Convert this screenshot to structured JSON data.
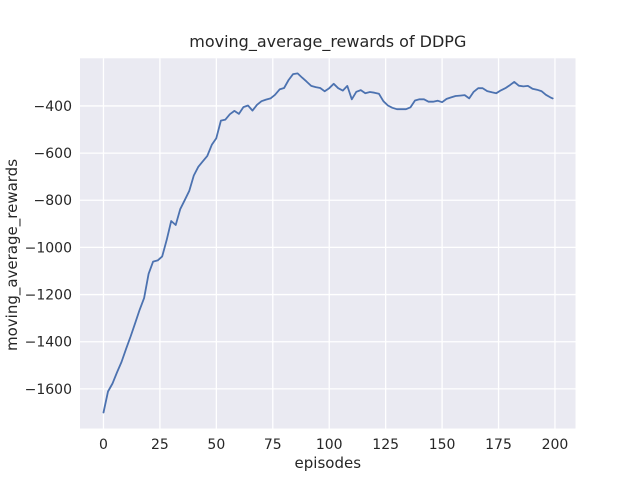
{
  "figure": {
    "background": "#ffffff"
  },
  "chart_data": {
    "type": "line",
    "title": "moving_average_rewards of DDPG",
    "xlabel": "episodes",
    "ylabel": "moving_average_rewards",
    "legend_position": "none",
    "grid": true,
    "plot_bg_color": "#eaeaf2",
    "grid_color": "#ffffff",
    "line_color": "#4c72b0",
    "text_color": "#262626",
    "xticks": [
      0,
      25,
      50,
      75,
      100,
      125,
      150,
      175,
      200
    ],
    "yticks": [
      -400,
      -600,
      -800,
      -1000,
      -1200,
      -1400,
      -1600
    ],
    "xlim": [
      -10.4,
      209.1
    ],
    "ylim": [
      -1768,
      -198
    ],
    "x": [
      0,
      2,
      4,
      6,
      8,
      10,
      12,
      14,
      16,
      18,
      20,
      22,
      24,
      26,
      28,
      30,
      32,
      34,
      36,
      38,
      40,
      42,
      44,
      46,
      48,
      50,
      52,
      54,
      56,
      58,
      60,
      62,
      64,
      66,
      68,
      70,
      72,
      74,
      76,
      78,
      80,
      82,
      84,
      86,
      88,
      90,
      92,
      94,
      96,
      98,
      100,
      102,
      104,
      106,
      108,
      110,
      112,
      114,
      116,
      118,
      120,
      122,
      124,
      126,
      128,
      130,
      132,
      134,
      136,
      138,
      140,
      142,
      144,
      146,
      148,
      150,
      152,
      154,
      156,
      158,
      160,
      162,
      164,
      166,
      168,
      170,
      172,
      174,
      176,
      178,
      180,
      182,
      184,
      186,
      188,
      190,
      192,
      194,
      196,
      198,
      199
    ],
    "y": [
      -1700,
      -1611,
      -1577,
      -1530,
      -1486,
      -1430,
      -1378,
      -1322,
      -1265,
      -1215,
      -1112,
      -1060,
      -1055,
      -1038,
      -968,
      -888,
      -905,
      -838,
      -800,
      -760,
      -695,
      -658,
      -635,
      -612,
      -565,
      -537,
      -462,
      -458,
      -435,
      -421,
      -434,
      -405,
      -398,
      -420,
      -395,
      -380,
      -373,
      -368,
      -353,
      -330,
      -324,
      -290,
      -265,
      -262,
      -280,
      -297,
      -315,
      -320,
      -324,
      -338,
      -325,
      -306,
      -325,
      -335,
      -315,
      -372,
      -340,
      -333,
      -346,
      -341,
      -344,
      -348,
      -380,
      -398,
      -408,
      -414,
      -414,
      -414,
      -406,
      -377,
      -372,
      -372,
      -382,
      -382,
      -378,
      -384,
      -370,
      -364,
      -358,
      -356,
      -354,
      -368,
      -340,
      -325,
      -325,
      -337,
      -342,
      -346,
      -334,
      -325,
      -312,
      -298,
      -314,
      -317,
      -315,
      -327,
      -331,
      -337,
      -353,
      -364,
      -368
    ]
  }
}
